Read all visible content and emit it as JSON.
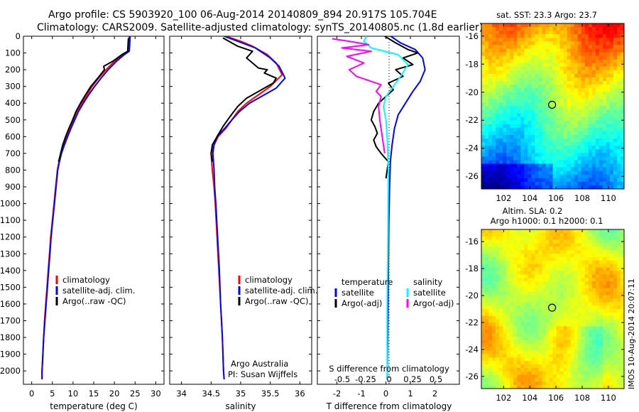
{
  "header": {
    "line1": "Argo profile: CS 5903920_100 06-Aug-2014 20140809_894 20.917S 105.704E",
    "line2": "Climatology: CARS2009. Satellite-adjusted climatology: synTS_20140805.nc (1.8d earlier)"
  },
  "chart_data": [
    {
      "type": "line",
      "xlabel": "temperature (deg C)",
      "xlim": [
        -2,
        32
      ],
      "xticks": [
        0,
        5,
        10,
        15,
        20,
        25,
        30
      ],
      "ylim": [
        2080,
        0
      ],
      "yticks": [
        0,
        100,
        200,
        300,
        400,
        500,
        600,
        700,
        800,
        900,
        1000,
        1100,
        1200,
        1300,
        1400,
        1500,
        1600,
        1700,
        1800,
        1900,
        2000
      ],
      "legend": [
        "climatology",
        "satellite-adj. clim.",
        "Argo(..raw -QC)"
      ],
      "series": [
        {
          "name": "climatology",
          "color": "#ff0000",
          "points": [
            [
              23.6,
              0
            ],
            [
              23.5,
              50
            ],
            [
              23.3,
              90
            ],
            [
              22.0,
              110
            ],
            [
              20.0,
              150
            ],
            [
              18.0,
              200
            ],
            [
              16.2,
              250
            ],
            [
              14.6,
              300
            ],
            [
              13.4,
              350
            ],
            [
              12.1,
              400
            ],
            [
              10.9,
              450
            ],
            [
              10.1,
              500
            ],
            [
              9.3,
              550
            ],
            [
              8.5,
              600
            ],
            [
              7.7,
              650
            ],
            [
              7.1,
              700
            ],
            [
              6.6,
              750
            ],
            [
              6.2,
              800
            ],
            [
              5.8,
              900
            ],
            [
              5.4,
              1000
            ],
            [
              5.0,
              1100
            ],
            [
              4.6,
              1200
            ],
            [
              4.3,
              1300
            ],
            [
              4.0,
              1400
            ],
            [
              3.7,
              1500
            ],
            [
              3.4,
              1600
            ],
            [
              3.1,
              1700
            ],
            [
              2.9,
              1800
            ],
            [
              2.7,
              1900
            ],
            [
              2.5,
              2000
            ],
            [
              2.5,
              2050
            ]
          ]
        },
        {
          "name": "satellite-adj. clim.",
          "color": "#0000ff",
          "points": [
            [
              23.8,
              0
            ],
            [
              23.7,
              50
            ],
            [
              23.6,
              90
            ],
            [
              22.4,
              110
            ],
            [
              20.5,
              150
            ],
            [
              18.5,
              200
            ],
            [
              16.8,
              250
            ],
            [
              15.2,
              300
            ],
            [
              13.8,
              350
            ],
            [
              12.5,
              400
            ],
            [
              11.3,
              450
            ],
            [
              10.4,
              500
            ],
            [
              9.5,
              550
            ],
            [
              8.7,
              600
            ],
            [
              7.9,
              650
            ],
            [
              7.2,
              700
            ],
            [
              6.7,
              750
            ],
            [
              6.3,
              800
            ],
            [
              5.9,
              900
            ],
            [
              5.5,
              1000
            ],
            [
              5.1,
              1100
            ],
            [
              4.7,
              1200
            ],
            [
              4.4,
              1300
            ],
            [
              4.1,
              1400
            ],
            [
              3.8,
              1500
            ],
            [
              3.5,
              1600
            ],
            [
              3.2,
              1700
            ],
            [
              2.9,
              1800
            ],
            [
              2.7,
              1900
            ],
            [
              2.5,
              2000
            ],
            [
              2.5,
              2050
            ]
          ]
        },
        {
          "name": "Argo(..raw -QC)",
          "color": "#000000",
          "points": [
            [
              23.4,
              10
            ],
            [
              23.3,
              50
            ],
            [
              23.2,
              90
            ],
            [
              21.8,
              110
            ],
            [
              19.6,
              150
            ],
            [
              17.4,
              180
            ],
            [
              17.6,
              200
            ],
            [
              16.0,
              250
            ],
            [
              14.3,
              300
            ],
            [
              13.0,
              350
            ],
            [
              11.8,
              400
            ],
            [
              10.7,
              450
            ],
            [
              9.9,
              500
            ],
            [
              9.0,
              550
            ],
            [
              8.2,
              600
            ],
            [
              7.5,
              650
            ],
            [
              7.0,
              700
            ],
            [
              6.5,
              750
            ]
          ]
        }
      ]
    },
    {
      "type": "line",
      "xlabel": "salinity",
      "xlim": [
        33.8,
        36.2
      ],
      "xticks": [
        34,
        34.5,
        35,
        35.5,
        36
      ],
      "ylim": [
        2080,
        0
      ],
      "legend": [
        "climatology",
        "satellite-adj. clim.",
        "Argo(..raw -QC)"
      ],
      "annotation": [
        "Argo Australia",
        "PI: Susan Wijffels"
      ],
      "series": [
        {
          "name": "climatology",
          "color": "#ff0000",
          "points": [
            [
              34.75,
              0
            ],
            [
              35.0,
              30
            ],
            [
              35.2,
              60
            ],
            [
              35.45,
              110
            ],
            [
              35.6,
              160
            ],
            [
              35.7,
              230
            ],
            [
              35.5,
              300
            ],
            [
              35.3,
              350
            ],
            [
              35.1,
              400
            ],
            [
              34.95,
              450
            ],
            [
              34.85,
              500
            ],
            [
              34.75,
              550
            ],
            [
              34.62,
              600
            ],
            [
              34.55,
              650
            ],
            [
              34.5,
              700
            ],
            [
              34.52,
              800
            ],
            [
              34.55,
              900
            ],
            [
              34.57,
              1000
            ],
            [
              34.6,
              1200
            ],
            [
              34.63,
              1400
            ],
            [
              34.66,
              1600
            ],
            [
              34.69,
              1800
            ],
            [
              34.71,
              2000
            ],
            [
              34.72,
              2050
            ]
          ]
        },
        {
          "name": "satellite-adj. clim.",
          "color": "#0000ff",
          "points": [
            [
              34.72,
              0
            ],
            [
              34.95,
              30
            ],
            [
              35.25,
              70
            ],
            [
              35.5,
              130
            ],
            [
              35.65,
              180
            ],
            [
              35.75,
              250
            ],
            [
              35.6,
              310
            ],
            [
              35.4,
              350
            ],
            [
              35.15,
              400
            ],
            [
              34.98,
              450
            ],
            [
              34.85,
              500
            ],
            [
              34.73,
              550
            ],
            [
              34.6,
              600
            ],
            [
              34.55,
              650
            ],
            [
              34.53,
              700
            ],
            [
              34.55,
              800
            ],
            [
              34.56,
              900
            ],
            [
              34.58,
              1000
            ],
            [
              34.61,
              1200
            ],
            [
              34.64,
              1400
            ],
            [
              34.66,
              1600
            ],
            [
              34.69,
              1800
            ],
            [
              34.71,
              2000
            ],
            [
              34.72,
              2050
            ]
          ]
        },
        {
          "name": "Argo(..raw -QC)",
          "color": "#000000",
          "points": [
            [
              34.7,
              10
            ],
            [
              34.95,
              60
            ],
            [
              35.2,
              90
            ],
            [
              35.1,
              130
            ],
            [
              35.3,
              190
            ],
            [
              35.45,
              200
            ],
            [
              35.4,
              220
            ],
            [
              35.6,
              250
            ],
            [
              35.55,
              280
            ],
            [
              35.35,
              320
            ],
            [
              35.1,
              370
            ],
            [
              34.95,
              420
            ],
            [
              34.82,
              480
            ],
            [
              34.7,
              540
            ],
            [
              34.6,
              600
            ],
            [
              34.52,
              650
            ],
            [
              34.5,
              700
            ],
            [
              34.52,
              750
            ]
          ]
        }
      ]
    },
    {
      "type": "line",
      "xlabel": "T difference from climatology",
      "top_xlabel": "S difference from climatology",
      "xlim": [
        -2.8,
        3.0
      ],
      "xticks": [
        -2,
        -1,
        0,
        1,
        2
      ],
      "top_xticks": [
        -0.5,
        -0.25,
        0,
        0.25,
        0.5
      ],
      "ylim": [
        2080,
        0
      ],
      "legend": {
        "temperature": [
          "satellite",
          "Argo(-adj)"
        ],
        "salinity": [
          "satellite",
          "Argo(-adj)"
        ]
      },
      "legend_headers": [
        "temperature",
        "salinity"
      ],
      "series": [
        {
          "name": "satellite",
          "color": "#0000ff",
          "points": [
            [
              0.2,
              0
            ],
            [
              0.6,
              40
            ],
            [
              1.2,
              80
            ],
            [
              1.5,
              130
            ],
            [
              1.6,
              200
            ],
            [
              1.4,
              270
            ],
            [
              1.1,
              330
            ],
            [
              0.8,
              400
            ],
            [
              0.5,
              470
            ],
            [
              0.35,
              550
            ],
            [
              0.25,
              650
            ],
            [
              0.18,
              750
            ],
            [
              0.15,
              900
            ],
            [
              0.12,
              1100
            ],
            [
              0.1,
              1400
            ],
            [
              0.08,
              1700
            ],
            [
              0.05,
              2050
            ]
          ]
        },
        {
          "name": "Argo(-adj)",
          "color": "#000000",
          "points": [
            [
              -0.05,
              0
            ],
            [
              0.4,
              40
            ],
            [
              0.9,
              80
            ],
            [
              1.3,
              100
            ],
            [
              0.7,
              130
            ],
            [
              1.1,
              170
            ],
            [
              0.4,
              200
            ],
            [
              0.7,
              240
            ],
            [
              0.1,
              280
            ],
            [
              0.3,
              320
            ],
            [
              0.0,
              360
            ],
            [
              -0.3,
              400
            ],
            [
              -0.5,
              450
            ],
            [
              -0.6,
              500
            ],
            [
              -0.45,
              540
            ],
            [
              -0.35,
              580
            ],
            [
              -0.5,
              620
            ],
            [
              -0.4,
              660
            ],
            [
              -0.2,
              700
            ],
            [
              0.1,
              750
            ],
            [
              0.05,
              800
            ],
            [
              0.0,
              850
            ]
          ]
        },
        {
          "name": "satellite S",
          "color": "#00ffff",
          "points": [
            [
              -0.8,
              0
            ],
            [
              -0.9,
              30
            ],
            [
              -0.6,
              70
            ],
            [
              0.5,
              110
            ],
            [
              0.9,
              170
            ],
            [
              0.6,
              240
            ],
            [
              0.3,
              300
            ],
            [
              0.0,
              360
            ],
            [
              -0.1,
              420
            ],
            [
              0.0,
              500
            ],
            [
              0.05,
              600
            ],
            [
              0.1,
              800
            ],
            [
              0.08,
              1200
            ],
            [
              0.05,
              1600
            ],
            [
              0.05,
              2050
            ]
          ]
        },
        {
          "name": "Argo(-adj) S",
          "color": "#ff00ff",
          "points": [
            [
              -2.2,
              15
            ],
            [
              -1.5,
              30
            ],
            [
              -0.7,
              50
            ],
            [
              -1.8,
              70
            ],
            [
              -0.6,
              90
            ],
            [
              -1.6,
              120
            ],
            [
              -0.9,
              160
            ],
            [
              -1.5,
              200
            ],
            [
              -1.2,
              240
            ],
            [
              -0.2,
              290
            ],
            [
              -0.4,
              330
            ],
            [
              -0.2,
              360
            ],
            [
              -0.3,
              420
            ],
            [
              -0.25,
              500
            ],
            [
              -0.15,
              600
            ],
            [
              -0.05,
              700
            ]
          ]
        }
      ]
    },
    {
      "type": "heatmap",
      "title": "sat. SST: 23.3 Argo: 23.7",
      "xticks": [
        102,
        104,
        106,
        108,
        110
      ],
      "yticks": [
        -16,
        -18,
        -20,
        -22,
        -24,
        -26
      ],
      "xlim": [
        100.3,
        111.2
      ],
      "ylim": [
        -26.9,
        -15.1
      ],
      "marker": [
        105.7,
        -20.9
      ]
    },
    {
      "type": "heatmap",
      "title": [
        "Altim. SLA: 0.2",
        "Argo h1000: 0.1 h2000: 0.1"
      ],
      "xticks": [
        102,
        104,
        106,
        108,
        110
      ],
      "yticks": [
        -16,
        -18,
        -20,
        -22,
        -24,
        -26
      ],
      "xlim": [
        100.3,
        111.2
      ],
      "ylim": [
        -26.9,
        -15.1
      ],
      "marker": [
        105.7,
        -20.9
      ]
    }
  ],
  "footer": {
    "imos_stamp": "IMOS 10-Aug-2014 20:07:11"
  }
}
